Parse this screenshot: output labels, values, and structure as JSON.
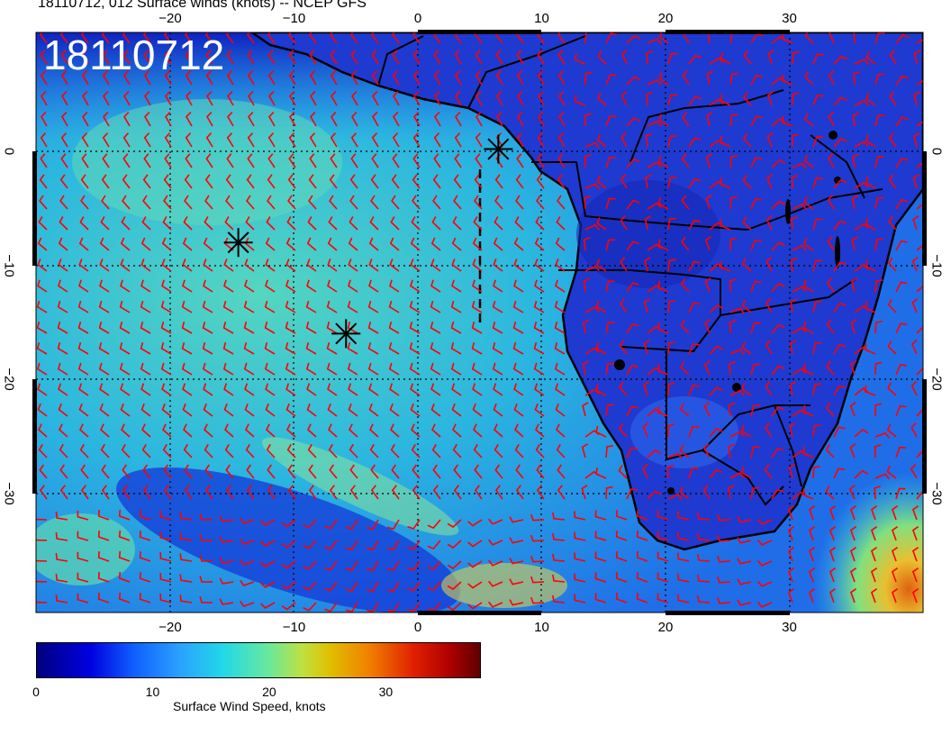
{
  "title": "18110712, 012 Surface winds (knots) -- NCEP GFS",
  "timestamp_label": "18110712",
  "map": {
    "lon_range": [
      -31,
      41
    ],
    "lat_range": [
      -40,
      10
    ],
    "lon_ticks": [
      -20,
      -10,
      0,
      10,
      20,
      30
    ],
    "lat_ticks": [
      0,
      -10,
      -20,
      -30
    ],
    "lon_tick_labels": [
      "−20",
      "−10",
      "0",
      "10",
      "20",
      "30"
    ],
    "lat_tick_labels": [
      "0",
      "−10",
      "−20",
      "−30"
    ],
    "storm_markers": [
      {
        "lon": 6.5,
        "lat": 0.2
      },
      {
        "lon": -14.5,
        "lat": -8.0
      },
      {
        "lon": -5.8,
        "lat": -16.0
      }
    ]
  },
  "colorbar": {
    "label": "Surface Wind Speed, knots",
    "ticks": [
      "0",
      "10",
      "20",
      "30"
    ],
    "tick_values": [
      0,
      10,
      20,
      30
    ],
    "range": [
      0,
      38
    ]
  },
  "colors": {
    "barb": "#ff0000",
    "coast": "#000000",
    "calm": "#0a1fc8",
    "moderate": "#2cc8d8",
    "strong": "#e0c020"
  }
}
